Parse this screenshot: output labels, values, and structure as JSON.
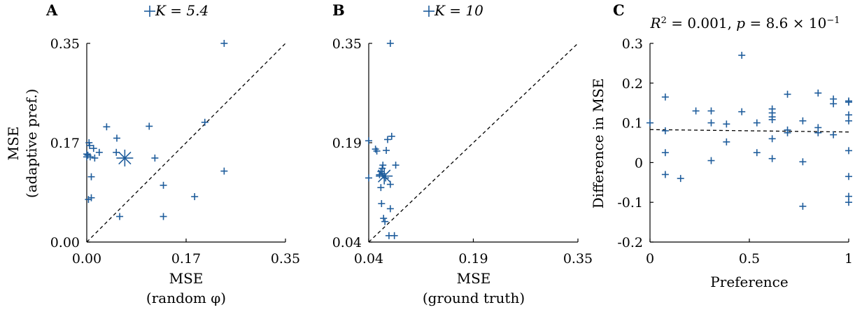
{
  "chart_data": [
    {
      "type": "scatter",
      "panel_label": "A",
      "legend": "K = 5.4",
      "xlabel": "MSE",
      "xlabel2": "(random φ)",
      "ylabel": "MSE",
      "ylabel2": "(adaptive pref.)",
      "xlim": [
        0,
        0.35
      ],
      "ylim": [
        0,
        0.35
      ],
      "xticks": [
        "0.00",
        "0.17",
        "0.35"
      ],
      "yticks": [
        "0.00",
        "0.17",
        "0.35"
      ],
      "reference_line": "y = x",
      "points": [
        [
          0.0,
          0.155
        ],
        [
          0.0,
          0.15
        ],
        [
          0.002,
          0.153
        ],
        [
          0.003,
          0.075
        ],
        [
          0.004,
          0.175
        ],
        [
          0.005,
          0.17
        ],
        [
          0.006,
          0.15
        ],
        [
          0.008,
          0.078
        ],
        [
          0.008,
          0.115
        ],
        [
          0.012,
          0.165
        ],
        [
          0.014,
          0.148
        ],
        [
          0.022,
          0.158
        ],
        [
          0.035,
          0.203
        ],
        [
          0.052,
          0.158
        ],
        [
          0.053,
          0.183
        ],
        [
          0.058,
          0.045
        ],
        [
          0.11,
          0.204
        ],
        [
          0.12,
          0.148
        ],
        [
          0.135,
          0.1
        ],
        [
          0.135,
          0.045
        ],
        [
          0.19,
          0.08
        ],
        [
          0.208,
          0.211
        ],
        [
          0.242,
          0.125
        ],
        [
          0.242,
          0.35
        ]
      ],
      "mean_point": [
        0.067,
        0.148
      ]
    },
    {
      "type": "scatter",
      "panel_label": "B",
      "legend": "K = 10",
      "xlabel": "MSE",
      "xlabel2": "(ground truth)",
      "xlim": [
        0.04,
        0.35
      ],
      "ylim": [
        0.04,
        0.35
      ],
      "xticks": [
        "0.04",
        "0.19",
        "0.35"
      ],
      "yticks": [
        "0.04",
        "0.19",
        "0.35"
      ],
      "reference_line": "y = x",
      "points": [
        [
          0.04,
          0.198
        ],
        [
          0.04,
          0.14
        ],
        [
          0.05,
          0.185
        ],
        [
          0.052,
          0.182
        ],
        [
          0.056,
          0.145
        ],
        [
          0.058,
          0.15
        ],
        [
          0.06,
          0.147
        ],
        [
          0.06,
          0.155
        ],
        [
          0.061,
          0.16
        ],
        [
          0.058,
          0.125
        ],
        [
          0.059,
          0.1
        ],
        [
          0.062,
          0.077
        ],
        [
          0.064,
          0.072
        ],
        [
          0.065,
          0.14
        ],
        [
          0.066,
          0.183
        ],
        [
          0.068,
          0.2
        ],
        [
          0.07,
          0.05
        ],
        [
          0.072,
          0.13
        ],
        [
          0.072,
          0.092
        ],
        [
          0.074,
          0.205
        ],
        [
          0.072,
          0.35
        ],
        [
          0.078,
          0.05
        ],
        [
          0.08,
          0.16
        ]
      ],
      "mean_point": [
        0.063,
        0.143
      ]
    },
    {
      "type": "scatter",
      "panel_label": "C",
      "title": "R² = 0.001, p = 8.6 × 10⁻¹",
      "xlabel": "Preference",
      "ylabel": "Difference in MSE",
      "xlim": [
        0,
        1
      ],
      "ylim": [
        -0.2,
        0.3
      ],
      "xticks": [
        "0",
        "0.5",
        "1"
      ],
      "yticks": [
        "-0.2",
        "-0.1",
        "0",
        "0.1",
        "0.2",
        "0.3"
      ],
      "fit_line": [
        [
          0,
          0.083
        ],
        [
          1,
          0.077
        ]
      ],
      "points": [
        [
          0.0,
          0.1
        ],
        [
          0.077,
          0.165
        ],
        [
          0.077,
          0.08
        ],
        [
          0.077,
          0.025
        ],
        [
          0.077,
          -0.03
        ],
        [
          0.154,
          -0.04
        ],
        [
          0.231,
          0.13
        ],
        [
          0.308,
          0.13
        ],
        [
          0.308,
          0.1
        ],
        [
          0.308,
          0.005
        ],
        [
          0.385,
          0.097
        ],
        [
          0.385,
          0.052
        ],
        [
          0.462,
          0.27
        ],
        [
          0.462,
          0.128
        ],
        [
          0.538,
          0.1
        ],
        [
          0.538,
          0.025
        ],
        [
          0.615,
          0.135
        ],
        [
          0.615,
          0.125
        ],
        [
          0.615,
          0.115
        ],
        [
          0.615,
          0.108
        ],
        [
          0.615,
          0.06
        ],
        [
          0.615,
          0.01
        ],
        [
          0.692,
          0.172
        ],
        [
          0.692,
          0.082
        ],
        [
          0.692,
          0.075
        ],
        [
          0.769,
          0.105
        ],
        [
          0.769,
          0.002
        ],
        [
          0.769,
          -0.11
        ],
        [
          0.846,
          0.175
        ],
        [
          0.846,
          0.088
        ],
        [
          0.846,
          0.075
        ],
        [
          0.923,
          0.16
        ],
        [
          0.923,
          0.148
        ],
        [
          0.923,
          0.07
        ],
        [
          1.0,
          0.155
        ],
        [
          1.0,
          0.152
        ],
        [
          1.0,
          0.12
        ],
        [
          1.0,
          0.105
        ],
        [
          1.0,
          0.03
        ],
        [
          1.0,
          -0.035
        ],
        [
          1.0,
          -0.085
        ],
        [
          1.0,
          -0.1
        ]
      ]
    }
  ]
}
